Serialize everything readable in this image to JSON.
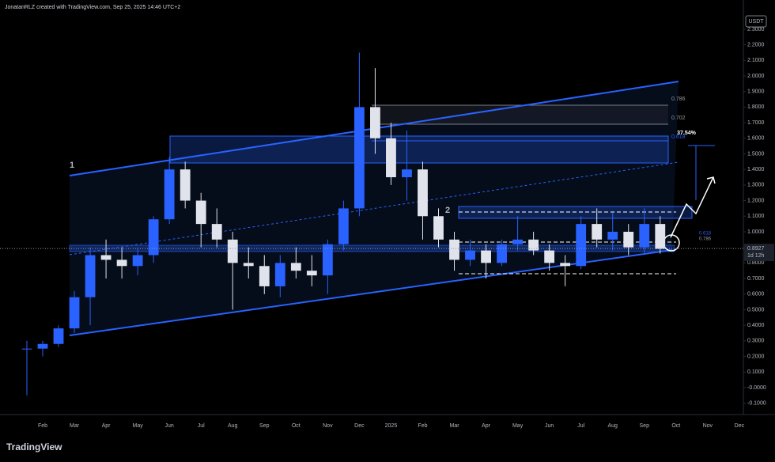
{
  "header": "JonatanRLZ created with TradingView.com, Sep 25, 2025 14:46 UTC+2",
  "currency": "USDT",
  "footer_logo": "TradingView",
  "chart_data": {
    "type": "candlestick",
    "categories": [
      null,
      "Feb",
      null,
      "Mar",
      null,
      "Apr",
      null,
      "May",
      null,
      "Jun",
      null,
      "Jul",
      null,
      "Aug",
      null,
      "Sep",
      null,
      "Oct",
      null,
      "Nov",
      null,
      "Dec",
      null,
      "2025",
      null,
      "Feb",
      null,
      "Mar",
      null,
      "Apr",
      null,
      "May",
      null,
      "Jun",
      null,
      "Jul",
      null,
      "Aug",
      null,
      "Sep",
      null,
      "Oct",
      null,
      "Nov",
      null,
      "Dec"
    ],
    "open": [
      0.25,
      0.25,
      0.28,
      0.38,
      0.58,
      0.85,
      0.82,
      0.78,
      0.85,
      1.08,
      1.4,
      1.2,
      1.05,
      0.95,
      0.8,
      0.78,
      0.65,
      0.8,
      0.75,
      0.72,
      0.92,
      1.15,
      1.8,
      1.6,
      1.35,
      1.4,
      1.1,
      0.95,
      0.82,
      0.88,
      0.8,
      0.92,
      0.95,
      0.88,
      0.8,
      0.78,
      1.05,
      0.95,
      1.0,
      0.9,
      1.05,
      null,
      null,
      null,
      null,
      null
    ],
    "high": [
      0.3,
      0.3,
      0.4,
      0.62,
      0.9,
      0.95,
      0.9,
      0.9,
      1.1,
      1.48,
      1.45,
      1.25,
      1.15,
      1.0,
      0.9,
      0.85,
      0.85,
      0.9,
      0.85,
      0.95,
      1.2,
      2.15,
      2.05,
      1.7,
      1.65,
      1.45,
      1.15,
      1.0,
      0.95,
      0.92,
      0.95,
      1.1,
      1.0,
      0.92,
      0.85,
      1.1,
      1.15,
      1.12,
      1.05,
      1.15,
      1.1,
      null,
      null,
      null,
      null,
      null
    ],
    "low": [
      -0.05,
      0.2,
      0.26,
      0.35,
      0.4,
      0.7,
      0.7,
      0.72,
      0.8,
      1.05,
      1.15,
      0.9,
      0.9,
      0.5,
      0.7,
      0.6,
      0.58,
      0.7,
      0.65,
      0.6,
      0.88,
      1.1,
      1.5,
      1.3,
      1.2,
      0.95,
      0.9,
      0.75,
      0.78,
      0.7,
      0.78,
      0.88,
      0.85,
      0.75,
      0.65,
      0.76,
      0.9,
      0.88,
      0.85,
      0.86,
      0.86,
      null,
      null,
      null,
      null,
      null
    ],
    "close": [
      0.25,
      0.28,
      0.38,
      0.58,
      0.85,
      0.82,
      0.78,
      0.85,
      1.08,
      1.4,
      1.2,
      1.05,
      0.95,
      0.8,
      0.78,
      0.65,
      0.8,
      0.75,
      0.72,
      0.92,
      1.15,
      1.8,
      1.6,
      1.35,
      1.4,
      1.1,
      0.95,
      0.82,
      0.88,
      0.8,
      0.92,
      0.95,
      0.88,
      0.8,
      0.78,
      1.05,
      0.95,
      1.0,
      0.9,
      1.05,
      0.89,
      null,
      null,
      null,
      null,
      null
    ],
    "up_color": "#2962ff",
    "down_color": "#e0e3eb",
    "ylim": [
      -0.173,
      2.396
    ],
    "yticks": [
      {
        "value": 2.3,
        "label": "2.3000"
      },
      {
        "value": 2.2,
        "label": "2.2000"
      },
      {
        "value": 2.1,
        "label": "2.1000"
      },
      {
        "value": 2,
        "label": "2.0000"
      },
      {
        "value": 1.9,
        "label": "1.9000"
      },
      {
        "value": 1.8,
        "label": "1.8000"
      },
      {
        "value": 1.7,
        "label": "1.7000"
      },
      {
        "value": 1.6,
        "label": "1.6000"
      },
      {
        "value": 1.5,
        "label": "1.5000"
      },
      {
        "value": 1.4,
        "label": "1.4000"
      },
      {
        "value": 1.3,
        "label": "1.3000"
      },
      {
        "value": 1.2,
        "label": "1.2000"
      },
      {
        "value": 1.1,
        "label": "1.1000"
      },
      {
        "value": 1,
        "label": "1.0000"
      },
      {
        "value": 0.9,
        "label": "0.9000"
      },
      {
        "value": 0.8,
        "label": "0.8000"
      },
      {
        "value": 0.7,
        "label": "0.7000"
      },
      {
        "value": 0.6,
        "label": "0.6000"
      },
      {
        "value": 0.5,
        "label": "0.5000"
      },
      {
        "value": 0.4,
        "label": "0.4000"
      },
      {
        "value": 0.3,
        "label": "0.3000"
      },
      {
        "value": 0.2,
        "label": "0.2000"
      },
      {
        "value": 0.1,
        "label": "0.1000"
      },
      {
        "value": 0,
        "label": "-0.0000"
      },
      {
        "value": -0.1,
        "label": "-0.1000"
      }
    ],
    "last_price": 0.8927,
    "countdown": "1d 12h",
    "annotations": [
      "1",
      "2",
      "0.786",
      "0.702",
      "0.618",
      "37.54%",
      "0.618",
      "0.786"
    ]
  }
}
